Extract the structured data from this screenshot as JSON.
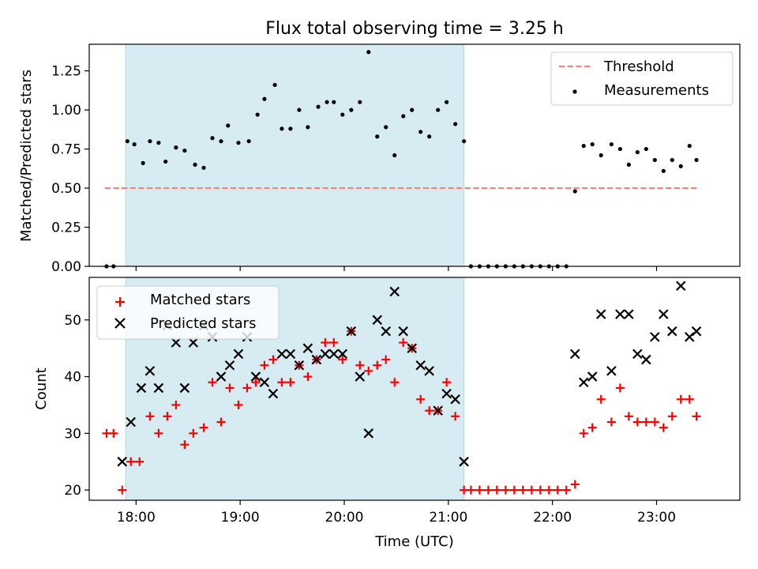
{
  "chart_data": [
    {
      "type": "scatter",
      "title": "Flux total observing time = 3.25 h",
      "xlabel": "",
      "ylabel": "Matched/Predicted stars",
      "xlim": [
        "17:33",
        "23:48"
      ],
      "ylim": [
        0,
        1.42
      ],
      "yticks": [
        "0.00",
        "0.25",
        "0.50",
        "0.75",
        "1.00",
        "1.25"
      ],
      "shaded_interval": [
        "17:54",
        "21:09"
      ],
      "legend_position": "upper right",
      "series": [
        {
          "name": "Threshold",
          "type": "line",
          "style": "dashed",
          "color": "#ff7f7f",
          "x": [
            "17:42",
            "23:23"
          ],
          "y": [
            0.5,
            0.5
          ]
        },
        {
          "name": "Measurements",
          "type": "scatter",
          "marker": "dot",
          "color": "#000000",
          "points": [
            [
              "17:43",
              0.0
            ],
            [
              "17:47",
              0.0
            ],
            [
              "17:55",
              0.8
            ],
            [
              "17:59",
              0.78
            ],
            [
              "18:04",
              0.66
            ],
            [
              "18:08",
              0.8
            ],
            [
              "18:13",
              0.79
            ],
            [
              "18:17",
              0.67
            ],
            [
              "18:23",
              0.76
            ],
            [
              "18:28",
              0.74
            ],
            [
              "18:34",
              0.65
            ],
            [
              "18:39",
              0.63
            ],
            [
              "18:44",
              0.82
            ],
            [
              "18:49",
              0.8
            ],
            [
              "18:53",
              0.9
            ],
            [
              "18:59",
              0.79
            ],
            [
              "19:05",
              0.8
            ],
            [
              "19:10",
              0.97
            ],
            [
              "19:14",
              1.07
            ],
            [
              "19:20",
              1.16
            ],
            [
              "19:24",
              0.88
            ],
            [
              "19:29",
              0.88
            ],
            [
              "19:34",
              1.0
            ],
            [
              "19:39",
              0.89
            ],
            [
              "19:45",
              1.02
            ],
            [
              "19:50",
              1.05
            ],
            [
              "19:54",
              1.05
            ],
            [
              "19:59",
              0.97
            ],
            [
              "20:04",
              1.0
            ],
            [
              "20:09",
              1.05
            ],
            [
              "20:14",
              1.37
            ],
            [
              "20:19",
              0.83
            ],
            [
              "20:24",
              0.89
            ],
            [
              "20:29",
              0.71
            ],
            [
              "20:34",
              0.96
            ],
            [
              "20:39",
              1.0
            ],
            [
              "20:44",
              0.86
            ],
            [
              "20:49",
              0.83
            ],
            [
              "20:54",
              1.0
            ],
            [
              "20:59",
              1.05
            ],
            [
              "21:04",
              0.91
            ],
            [
              "21:09",
              0.8
            ],
            [
              "21:13",
              0.0
            ],
            [
              "21:18",
              0.0
            ],
            [
              "21:23",
              0.0
            ],
            [
              "21:28",
              0.0
            ],
            [
              "21:33",
              0.0
            ],
            [
              "21:38",
              0.0
            ],
            [
              "21:43",
              0.0
            ],
            [
              "21:48",
              0.0
            ],
            [
              "21:53",
              0.0
            ],
            [
              "21:58",
              0.0
            ],
            [
              "22:03",
              0.0
            ],
            [
              "22:08",
              0.0
            ],
            [
              "22:13",
              0.48
            ],
            [
              "22:18",
              0.77
            ],
            [
              "22:23",
              0.78
            ],
            [
              "22:28",
              0.71
            ],
            [
              "22:34",
              0.78
            ],
            [
              "22:39",
              0.75
            ],
            [
              "22:44",
              0.65
            ],
            [
              "22:49",
              0.73
            ],
            [
              "22:54",
              0.75
            ],
            [
              "22:59",
              0.68
            ],
            [
              "23:04",
              0.61
            ],
            [
              "23:09",
              0.68
            ],
            [
              "23:14",
              0.64
            ],
            [
              "23:19",
              0.77
            ],
            [
              "23:23",
              0.68
            ]
          ]
        }
      ]
    },
    {
      "type": "scatter",
      "title": "",
      "xlabel": "Time (UTC)",
      "ylabel": "Count",
      "xlim": [
        "17:33",
        "23:48"
      ],
      "ylim": [
        18.2,
        57.5
      ],
      "yticks": [
        "20",
        "30",
        "40",
        "50"
      ],
      "xticks": [
        "18:00",
        "19:00",
        "20:00",
        "21:00",
        "22:00",
        "23:00"
      ],
      "shaded_interval": [
        "17:54",
        "21:09"
      ],
      "legend_position": "upper left",
      "series": [
        {
          "name": "Matched stars",
          "type": "scatter",
          "marker": "plus",
          "color": "#ff0000",
          "points": [
            [
              "17:43",
              30
            ],
            [
              "17:47",
              30
            ],
            [
              "17:52",
              20
            ],
            [
              "17:57",
              25
            ],
            [
              "18:02",
              25
            ],
            [
              "18:08",
              33
            ],
            [
              "18:13",
              30
            ],
            [
              "18:18",
              33
            ],
            [
              "18:23",
              35
            ],
            [
              "18:28",
              28
            ],
            [
              "18:33",
              30
            ],
            [
              "18:39",
              31
            ],
            [
              "18:44",
              39
            ],
            [
              "18:49",
              32
            ],
            [
              "18:54",
              38
            ],
            [
              "18:59",
              35
            ],
            [
              "19:04",
              38
            ],
            [
              "19:09",
              39
            ],
            [
              "19:14",
              42
            ],
            [
              "19:19",
              43
            ],
            [
              "19:24",
              39
            ],
            [
              "19:29",
              39
            ],
            [
              "19:34",
              42
            ],
            [
              "19:39",
              40
            ],
            [
              "19:44",
              43
            ],
            [
              "19:49",
              46
            ],
            [
              "19:54",
              46
            ],
            [
              "19:59",
              43
            ],
            [
              "20:04",
              48
            ],
            [
              "20:09",
              42
            ],
            [
              "20:14",
              41
            ],
            [
              "20:19",
              42
            ],
            [
              "20:24",
              43
            ],
            [
              "20:29",
              39
            ],
            [
              "20:34",
              46
            ],
            [
              "20:39",
              45
            ],
            [
              "20:44",
              36
            ],
            [
              "20:49",
              34
            ],
            [
              "20:54",
              34
            ],
            [
              "20:59",
              39
            ],
            [
              "21:04",
              33
            ],
            [
              "21:09",
              20
            ],
            [
              "21:13",
              20
            ],
            [
              "21:18",
              20
            ],
            [
              "21:23",
              20
            ],
            [
              "21:28",
              20
            ],
            [
              "21:33",
              20
            ],
            [
              "21:38",
              20
            ],
            [
              "21:43",
              20
            ],
            [
              "21:48",
              20
            ],
            [
              "21:53",
              20
            ],
            [
              "21:58",
              20
            ],
            [
              "22:03",
              20
            ],
            [
              "22:08",
              20
            ],
            [
              "22:13",
              21
            ],
            [
              "22:18",
              30
            ],
            [
              "22:23",
              31
            ],
            [
              "22:28",
              36
            ],
            [
              "22:34",
              32
            ],
            [
              "22:39",
              38
            ],
            [
              "22:44",
              33
            ],
            [
              "22:49",
              32
            ],
            [
              "22:54",
              32
            ],
            [
              "22:59",
              32
            ],
            [
              "23:04",
              31
            ],
            [
              "23:09",
              33
            ],
            [
              "23:14",
              36
            ],
            [
              "23:19",
              36
            ],
            [
              "23:23",
              33
            ]
          ]
        },
        {
          "name": "Predicted stars",
          "type": "scatter",
          "marker": "x",
          "color": "#000000",
          "points": [
            [
              "17:52",
              25
            ],
            [
              "17:57",
              32
            ],
            [
              "18:03",
              38
            ],
            [
              "18:08",
              41
            ],
            [
              "18:13",
              38
            ],
            [
              "18:18",
              49
            ],
            [
              "18:23",
              46
            ],
            [
              "18:28",
              38
            ],
            [
              "18:33",
              46
            ],
            [
              "18:39",
              49
            ],
            [
              "18:44",
              47
            ],
            [
              "18:49",
              40
            ],
            [
              "18:54",
              42
            ],
            [
              "18:59",
              44
            ],
            [
              "19:04",
              47
            ],
            [
              "19:09",
              40
            ],
            [
              "19:14",
              39
            ],
            [
              "19:19",
              37
            ],
            [
              "19:24",
              44
            ],
            [
              "19:29",
              44
            ],
            [
              "19:34",
              42
            ],
            [
              "19:39",
              45
            ],
            [
              "19:44",
              43
            ],
            [
              "19:49",
              44
            ],
            [
              "19:54",
              44
            ],
            [
              "19:59",
              44
            ],
            [
              "20:04",
              48
            ],
            [
              "20:09",
              40
            ],
            [
              "20:14",
              30
            ],
            [
              "20:19",
              50
            ],
            [
              "20:24",
              48
            ],
            [
              "20:29",
              55
            ],
            [
              "20:34",
              48
            ],
            [
              "20:39",
              45
            ],
            [
              "20:44",
              42
            ],
            [
              "20:49",
              41
            ],
            [
              "20:54",
              34
            ],
            [
              "20:59",
              37
            ],
            [
              "21:04",
              36
            ],
            [
              "21:09",
              25
            ],
            [
              "22:13",
              44
            ],
            [
              "22:18",
              39
            ],
            [
              "22:23",
              40
            ],
            [
              "22:28",
              51
            ],
            [
              "22:34",
              41
            ],
            [
              "22:39",
              51
            ],
            [
              "22:44",
              51
            ],
            [
              "22:49",
              44
            ],
            [
              "22:54",
              43
            ],
            [
              "22:59",
              47
            ],
            [
              "23:04",
              51
            ],
            [
              "23:09",
              48
            ],
            [
              "23:14",
              56
            ],
            [
              "23:19",
              47
            ],
            [
              "23:23",
              48
            ]
          ]
        }
      ]
    }
  ]
}
